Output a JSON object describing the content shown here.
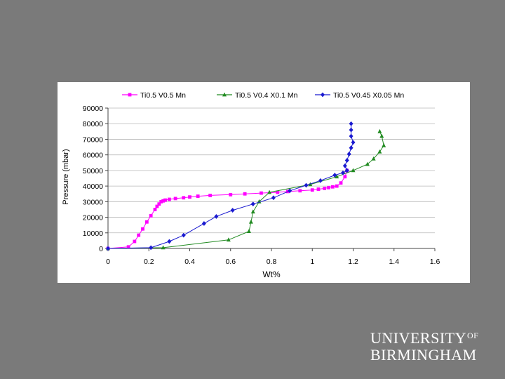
{
  "logo": {
    "line1": "UNIVERSITY",
    "of": "OF",
    "line2": "BIRMINGHAM"
  },
  "chart_data": {
    "type": "scatter",
    "xlabel": "Wt%",
    "ylabel": "Pressure (mbar)",
    "xlim": [
      0,
      1.6
    ],
    "ylim": [
      0,
      90000
    ],
    "xticks": [
      0,
      0.2,
      0.4,
      0.6,
      0.8,
      1,
      1.2,
      1.4,
      1.6
    ],
    "xtick_labels": [
      "0",
      "0.2",
      "0.4",
      "0.6",
      "0.8",
      "1",
      "1.2",
      "1.4",
      "1.6"
    ],
    "yticks": [
      0,
      10000,
      20000,
      30000,
      40000,
      50000,
      60000,
      70000,
      80000,
      90000
    ],
    "ytick_labels": [
      "0",
      "10000",
      "20000",
      "30000",
      "40000",
      "50000",
      "60000",
      "70000",
      "80000",
      "90000"
    ],
    "grid": "horizontal",
    "legend_position": "top",
    "series": [
      {
        "name": "Ti0.5 V0.5 Mn",
        "color": "#ff00ff",
        "marker": "square",
        "x": [
          0,
          0.1,
          0.13,
          0.15,
          0.17,
          0.19,
          0.21,
          0.23,
          0.24,
          0.25,
          0.26,
          0.27,
          0.28,
          0.3,
          0.33,
          0.37,
          0.4,
          0.44,
          0.5,
          0.6,
          0.67,
          0.75,
          0.83,
          0.88,
          0.94,
          1.0,
          1.03,
          1.06,
          1.08,
          1.1,
          1.12,
          1.14,
          1.16,
          1.17
        ],
        "y": [
          0,
          1000,
          4500,
          8500,
          12500,
          17000,
          21000,
          25000,
          27000,
          28500,
          30000,
          30500,
          31000,
          31500,
          32000,
          32500,
          33000,
          33500,
          34000,
          34500,
          35000,
          35500,
          36000,
          36500,
          37000,
          37500,
          38000,
          38500,
          39000,
          39500,
          40000,
          42000,
          46000,
          50000
        ]
      },
      {
        "name": "Ti0.5 V0.4 X0.1 Mn",
        "color": "#228b22",
        "marker": "triangle",
        "x": [
          0,
          0.27,
          0.59,
          0.69,
          0.7,
          0.71,
          0.74,
          0.79,
          0.99,
          1.12,
          1.2,
          1.27,
          1.3,
          1.33,
          1.35,
          1.34,
          1.33
        ],
        "y": [
          0,
          500,
          5500,
          11000,
          17000,
          23500,
          30000,
          36000,
          41000,
          46000,
          50000,
          54000,
          57500,
          62000,
          66000,
          72000,
          75000
        ]
      },
      {
        "name": "Ti0.5 V0.45 X0.05 Mn",
        "color": "#1a1ad0",
        "marker": "diamond",
        "x": [
          0,
          0.21,
          0.3,
          0.37,
          0.47,
          0.53,
          0.61,
          0.71,
          0.81,
          0.89,
          0.97,
          1.04,
          1.11,
          1.15,
          1.17,
          1.16,
          1.17,
          1.18,
          1.19,
          1.2,
          1.19,
          1.19,
          1.19
        ],
        "y": [
          0,
          500,
          4500,
          8500,
          16000,
          20500,
          24500,
          28500,
          32500,
          37000,
          40500,
          43500,
          47000,
          48500,
          50000,
          53000,
          56500,
          60500,
          64500,
          68000,
          72000,
          76000,
          80000
        ]
      }
    ]
  }
}
